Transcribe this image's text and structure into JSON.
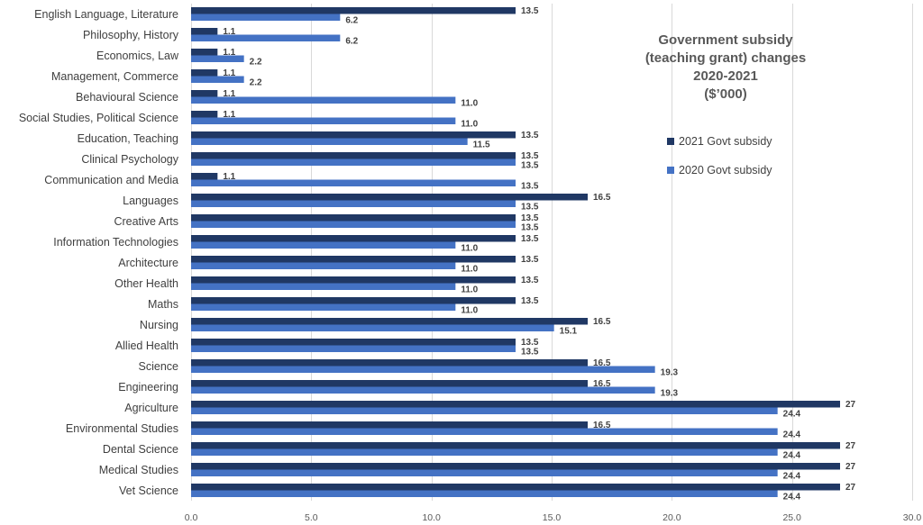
{
  "colors": {
    "series_2021": "#203864",
    "series_2020": "#4472C4"
  },
  "chart_data": {
    "type": "bar",
    "orientation": "horizontal",
    "title": [
      "Government subsidy",
      "(teaching grant) changes",
      "2020-2021",
      "($’000)"
    ],
    "xlabel": "",
    "ylabel": "",
    "xlim": [
      0,
      30
    ],
    "x_ticks": [
      "0.0",
      "5.0",
      "10.0",
      "15.0",
      "20.0",
      "25.0",
      "30.0"
    ],
    "x_tick_values": [
      0,
      5,
      10,
      15,
      20,
      25,
      30
    ],
    "grid": true,
    "legend_position": "right",
    "categories": [
      "English Language, Literature",
      "Philosophy, History",
      "Economics, Law",
      "Management, Commerce",
      "Behavioural Science",
      "Social Studies, Political Science",
      "Education, Teaching",
      "Clinical Psychology",
      "Communication and Media",
      "Languages",
      "Creative Arts",
      "Information Technologies",
      "Architecture",
      "Other Health",
      "Maths",
      "Nursing",
      "Allied Health",
      "Science",
      "Engineering",
      "Agriculture",
      "Environmental Studies",
      "Dental Science",
      "Medical Studies",
      "Vet Science"
    ],
    "series": [
      {
        "name": "2021 Govt subsidy",
        "values": [
          13.5,
          1.1,
          1.1,
          1.1,
          1.1,
          1.1,
          13.5,
          13.5,
          1.1,
          16.5,
          13.5,
          13.5,
          13.5,
          13.5,
          13.5,
          16.5,
          13.5,
          16.5,
          16.5,
          27,
          16.5,
          27,
          27,
          27
        ],
        "labels": [
          "13.5",
          "1.1",
          "1.1",
          "1.1",
          "1.1",
          "1.1",
          "13.5",
          "13.5",
          "1.1",
          "16.5",
          "13.5",
          "13.5",
          "13.5",
          "13.5",
          "13.5",
          "16.5",
          "13.5",
          "16.5",
          "16.5",
          "27",
          "16.5",
          "27",
          "27",
          "27"
        ]
      },
      {
        "name": "2020 Govt subsidy",
        "values": [
          6.2,
          6.2,
          2.2,
          2.2,
          11.0,
          11.0,
          11.5,
          13.5,
          13.5,
          13.5,
          13.5,
          11.0,
          11.0,
          11.0,
          11.0,
          15.1,
          13.5,
          19.3,
          19.3,
          24.4,
          24.4,
          24.4,
          24.4,
          24.4
        ],
        "labels": [
          "6.2",
          "6.2",
          "2.2",
          "2.2",
          "11.0",
          "11.0",
          "11.5",
          "13.5",
          "13.5",
          "13.5",
          "13.5",
          "11.0",
          "11.0",
          "11.0",
          "11.0",
          "15.1",
          "13.5",
          "19.3",
          "19.3",
          "24.4",
          "24.4",
          "24.4",
          "24.4",
          "24.4"
        ]
      }
    ]
  }
}
